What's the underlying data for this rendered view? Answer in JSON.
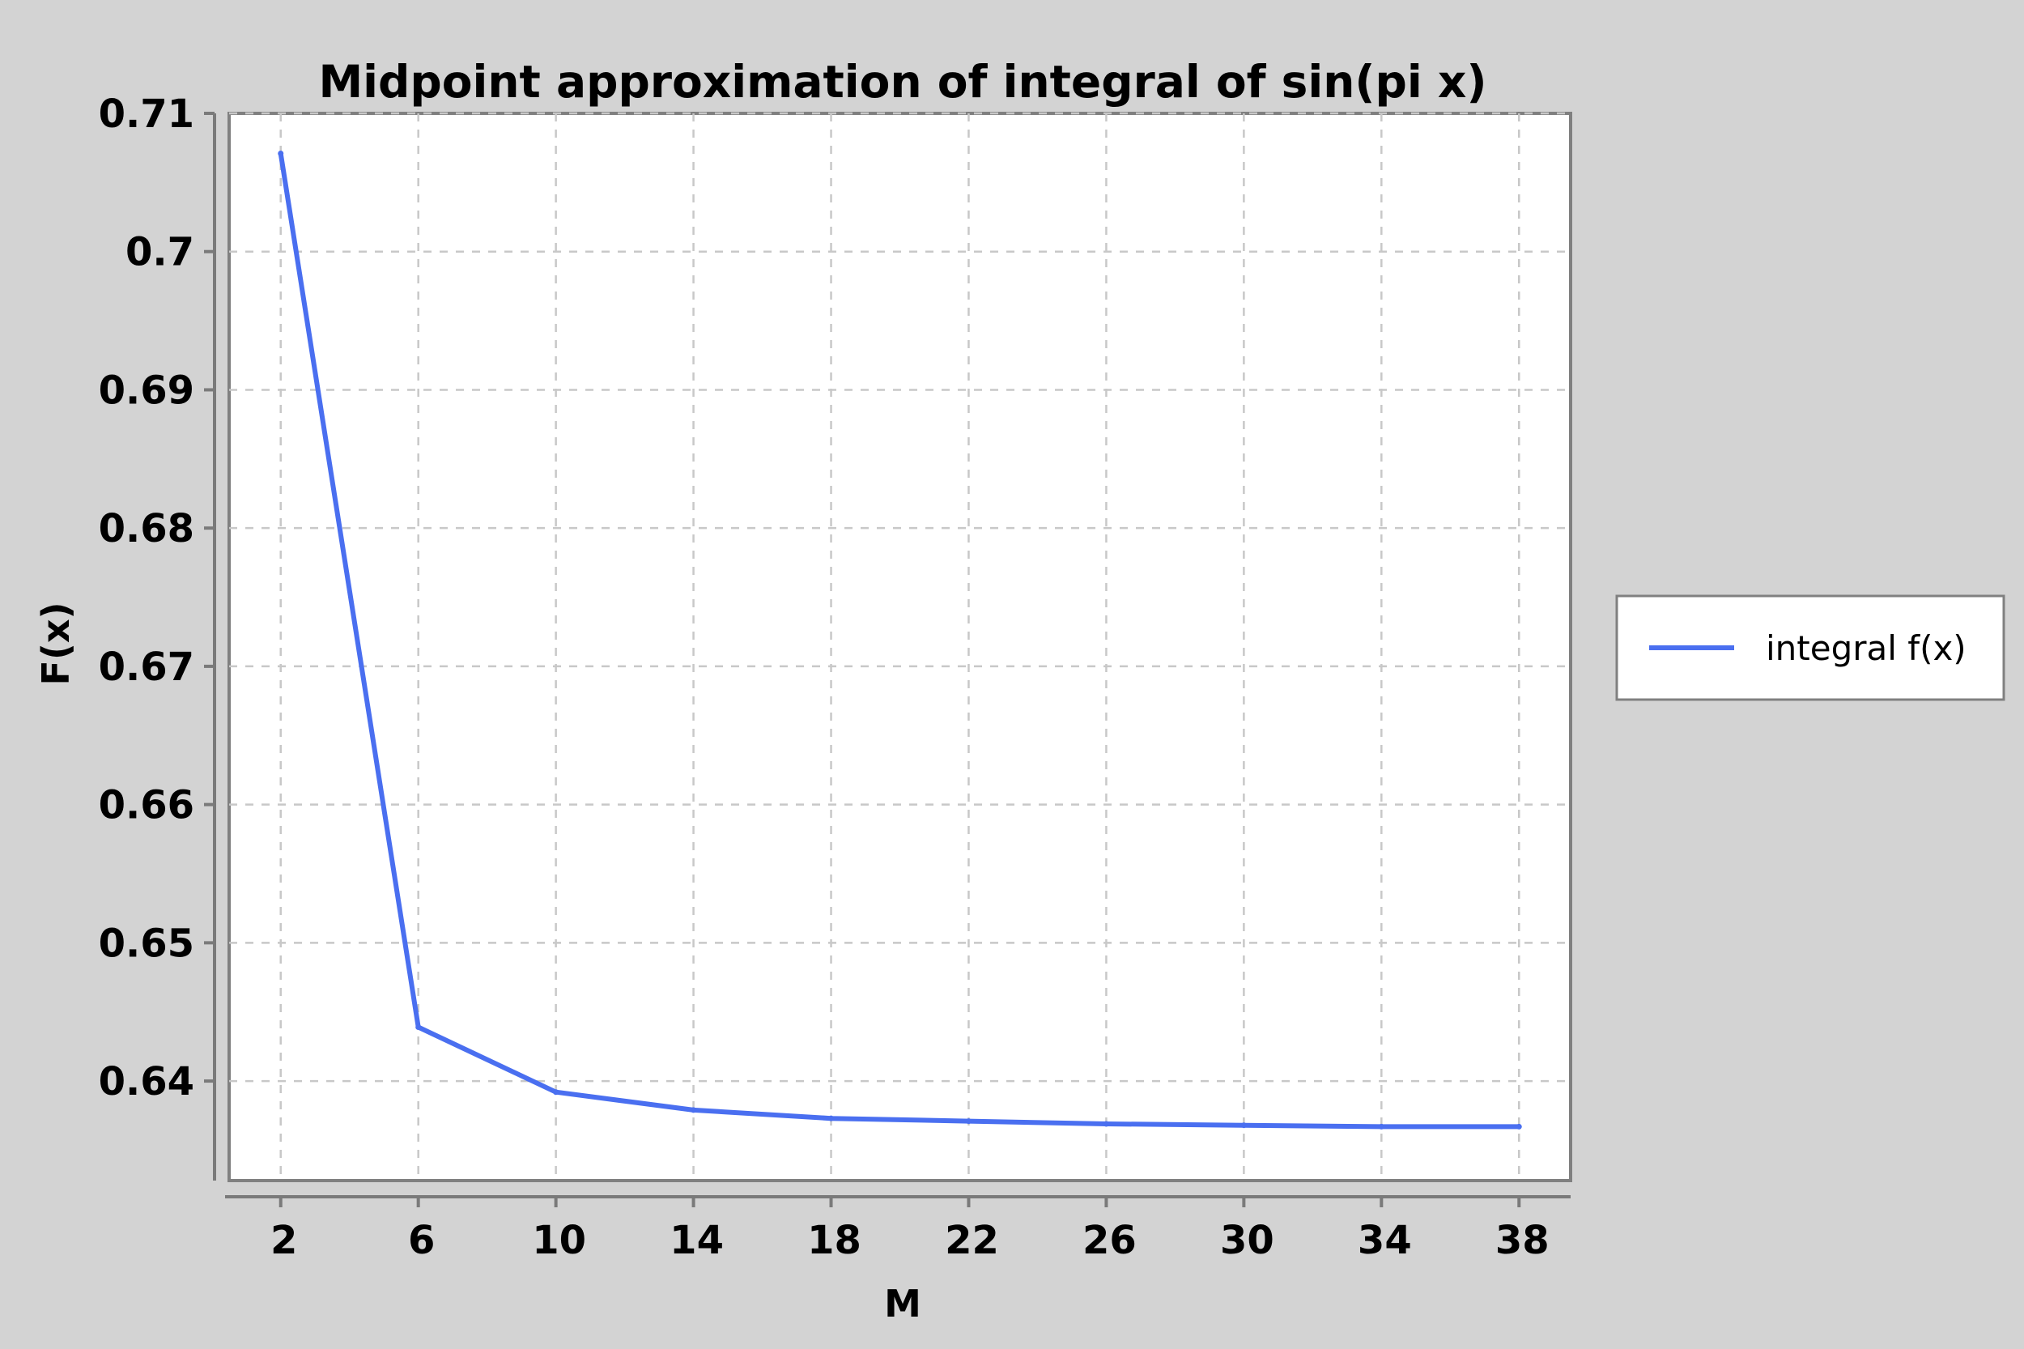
{
  "chart_data": {
    "type": "line",
    "title": "Midpoint approximation of integral of sin(pi x)",
    "xlabel": "M",
    "ylabel": "F(x)",
    "xlim": [
      0.5,
      39.5
    ],
    "ylim": [
      0.6328,
      0.71
    ],
    "x_ticks": [
      2,
      6,
      10,
      14,
      18,
      22,
      26,
      30,
      34,
      38
    ],
    "x_tick_labels": [
      "2",
      "6",
      "10",
      "14",
      "18",
      "22",
      "26",
      "30",
      "34",
      "38"
    ],
    "y_ticks": [
      0.64,
      0.65,
      0.66,
      0.67,
      0.68,
      0.69,
      0.7,
      0.71
    ],
    "y_tick_labels": [
      "0.64",
      "0.65",
      "0.66",
      "0.67",
      "0.68",
      "0.69",
      "0.7",
      "0.71"
    ],
    "grid": true,
    "legend_position": "right",
    "series": [
      {
        "name": "integral f(x)",
        "color": "#4a6ff0",
        "x": [
          2,
          6,
          10,
          14,
          18,
          22,
          26,
          30,
          34,
          38
        ],
        "y": [
          0.7071,
          0.6439,
          0.6392,
          0.6379,
          0.6373,
          0.6371,
          0.6369,
          0.6368,
          0.6367,
          0.6367
        ]
      }
    ]
  }
}
